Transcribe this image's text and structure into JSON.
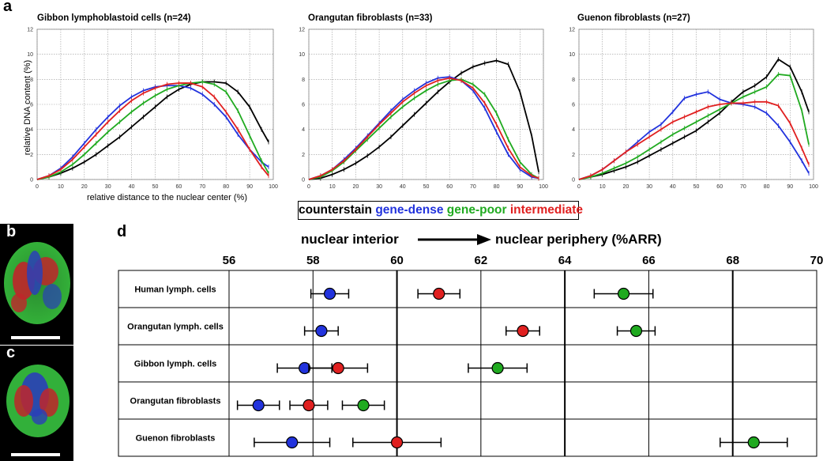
{
  "panels": {
    "a": "a",
    "b": "b",
    "c": "c",
    "d": "d"
  },
  "colors": {
    "counterstain": "#000000",
    "gene_dense": "#2233dd",
    "gene_poor": "#20aa20",
    "intermediate": "#e02020"
  },
  "legend": {
    "counterstain": "counterstain",
    "gene_dense": "gene-dense",
    "gene_poor": "gene-poor",
    "intermediate": "intermediate"
  },
  "chart_data": [
    {
      "type": "line",
      "title": "Gibbon lymphoblastoid cells (n=24)",
      "xlabel": "relative distance to the nuclear center (%)",
      "ylabel": "relative DNA content (%)",
      "xlim": [
        0,
        100
      ],
      "ylim": [
        0,
        12
      ],
      "xticks": [
        0,
        10,
        20,
        30,
        40,
        50,
        60,
        70,
        80,
        90,
        100
      ],
      "yticks": [
        0,
        2,
        4,
        6,
        8,
        10,
        12
      ],
      "x": [
        0,
        5,
        10,
        15,
        20,
        25,
        30,
        35,
        40,
        45,
        50,
        55,
        60,
        65,
        70,
        75,
        80,
        85,
        90,
        95,
        98
      ],
      "series": [
        {
          "name": "counterstain",
          "values": [
            0,
            0.2,
            0.5,
            0.9,
            1.4,
            2.0,
            2.7,
            3.4,
            4.2,
            5.0,
            5.8,
            6.6,
            7.2,
            7.6,
            7.8,
            7.8,
            7.7,
            7.0,
            5.8,
            4.0,
            3.0
          ]
        },
        {
          "name": "gene-dense",
          "values": [
            0,
            0.3,
            0.9,
            1.8,
            2.9,
            4.0,
            5.0,
            5.9,
            6.6,
            7.1,
            7.4,
            7.5,
            7.5,
            7.3,
            6.8,
            6.0,
            5.0,
            3.6,
            2.4,
            1.4,
            1.0
          ]
        },
        {
          "name": "gene-poor",
          "values": [
            0,
            0.2,
            0.6,
            1.2,
            2.0,
            2.9,
            3.8,
            4.6,
            5.4,
            6.1,
            6.7,
            7.2,
            7.5,
            7.7,
            7.8,
            7.6,
            7.0,
            5.5,
            3.5,
            1.5,
            0.5
          ]
        },
        {
          "name": "intermediate",
          "values": [
            0,
            0.3,
            0.8,
            1.6,
            2.6,
            3.6,
            4.6,
            5.5,
            6.3,
            6.9,
            7.3,
            7.6,
            7.7,
            7.7,
            7.4,
            6.6,
            5.4,
            4.0,
            2.4,
            1.0,
            0.3
          ]
        }
      ]
    },
    {
      "type": "line",
      "title": "Orangutan fibroblasts (n=33)",
      "xlabel": "",
      "ylabel": "",
      "xlim": [
        0,
        100
      ],
      "ylim": [
        0,
        12
      ],
      "xticks": [
        0,
        10,
        20,
        30,
        40,
        50,
        60,
        70,
        80,
        90,
        100
      ],
      "yticks": [
        0,
        2,
        4,
        6,
        8,
        10,
        12
      ],
      "x": [
        0,
        5,
        10,
        15,
        20,
        25,
        30,
        35,
        40,
        45,
        50,
        55,
        60,
        65,
        70,
        75,
        80,
        85,
        90,
        95,
        98
      ],
      "series": [
        {
          "name": "counterstain",
          "values": [
            0,
            0.1,
            0.4,
            0.8,
            1.3,
            1.9,
            2.6,
            3.4,
            4.3,
            5.2,
            6.1,
            7.0,
            7.8,
            8.5,
            9.0,
            9.3,
            9.5,
            9.2,
            7.0,
            3.5,
            0.6
          ]
        },
        {
          "name": "gene-dense",
          "values": [
            0,
            0.3,
            0.8,
            1.6,
            2.5,
            3.5,
            4.5,
            5.5,
            6.4,
            7.1,
            7.7,
            8.1,
            8.2,
            7.9,
            7.1,
            5.7,
            3.8,
            2.0,
            0.8,
            0.2,
            0.1
          ]
        },
        {
          "name": "gene-poor",
          "values": [
            0,
            0.2,
            0.7,
            1.4,
            2.3,
            3.2,
            4.1,
            5.0,
            5.8,
            6.5,
            7.1,
            7.6,
            7.9,
            8.0,
            7.6,
            6.8,
            5.3,
            3.2,
            1.4,
            0.4,
            0.1
          ]
        },
        {
          "name": "intermediate",
          "values": [
            0,
            0.3,
            0.8,
            1.5,
            2.4,
            3.4,
            4.4,
            5.3,
            6.2,
            6.9,
            7.5,
            7.9,
            8.1,
            7.9,
            7.3,
            6.1,
            4.4,
            2.5,
            1.0,
            0.3,
            0.1
          ]
        }
      ]
    },
    {
      "type": "line",
      "title": "Guenon fibroblasts (n=27)",
      "xlabel": "",
      "ylabel": "",
      "xlim": [
        0,
        100
      ],
      "ylim": [
        0,
        12
      ],
      "xticks": [
        0,
        10,
        20,
        30,
        40,
        50,
        60,
        70,
        80,
        90,
        100
      ],
      "yticks": [
        0,
        2,
        4,
        6,
        8,
        10,
        12
      ],
      "x": [
        0,
        5,
        10,
        15,
        20,
        25,
        30,
        35,
        40,
        45,
        50,
        55,
        60,
        65,
        70,
        75,
        80,
        85,
        90,
        95,
        98
      ],
      "series": [
        {
          "name": "counterstain",
          "values": [
            0,
            0.2,
            0.4,
            0.7,
            1.0,
            1.4,
            1.9,
            2.4,
            2.9,
            3.4,
            3.9,
            4.6,
            5.3,
            6.2,
            7.0,
            7.5,
            8.2,
            9.6,
            9.0,
            7.0,
            5.4
          ]
        },
        {
          "name": "gene-dense",
          "values": [
            0,
            0.3,
            0.8,
            1.5,
            2.2,
            3.0,
            3.8,
            4.4,
            5.4,
            6.5,
            6.8,
            7.0,
            6.4,
            6.1,
            6.0,
            5.8,
            5.3,
            4.3,
            3.0,
            1.5,
            0.5
          ]
        },
        {
          "name": "gene-poor",
          "values": [
            0,
            0.2,
            0.5,
            0.9,
            1.3,
            1.8,
            2.4,
            3.0,
            3.6,
            4.1,
            4.6,
            5.1,
            5.6,
            6.1,
            6.6,
            7.0,
            7.4,
            8.4,
            8.3,
            5.5,
            2.8
          ]
        },
        {
          "name": "intermediate",
          "values": [
            0,
            0.3,
            0.8,
            1.5,
            2.2,
            2.8,
            3.4,
            4.0,
            4.6,
            5.0,
            5.4,
            5.8,
            6.0,
            6.1,
            6.1,
            6.2,
            6.2,
            5.9,
            4.5,
            2.5,
            1.2
          ]
        }
      ]
    },
    {
      "type": "scatter",
      "title": "nuclear interior",
      "subtitle": "nuclear periphery (%ARR)",
      "xlim": [
        56,
        70
      ],
      "xticks": [
        56,
        58,
        60,
        62,
        64,
        66,
        68,
        70
      ],
      "rows": [
        "Human lymph. cells",
        "Orangutan lymph. cells",
        "Gibbon lymph. cells",
        "Orangutan fibroblasts",
        "Guenon fibroblasts"
      ],
      "series": [
        {
          "name": "gene-dense",
          "values": [
            58.4,
            58.2,
            57.8,
            56.7,
            57.5
          ],
          "errors": [
            0.45,
            0.4,
            0.65,
            0.5,
            0.9
          ]
        },
        {
          "name": "intermediate",
          "values": [
            61.0,
            63.0,
            58.6,
            57.9,
            60.0
          ],
          "errors": [
            0.5,
            0.4,
            0.7,
            0.45,
            1.05
          ]
        },
        {
          "name": "gene-poor",
          "values": [
            65.4,
            65.7,
            62.4,
            59.2,
            68.5
          ],
          "errors": [
            0.7,
            0.45,
            0.7,
            0.5,
            0.8
          ]
        }
      ]
    }
  ]
}
